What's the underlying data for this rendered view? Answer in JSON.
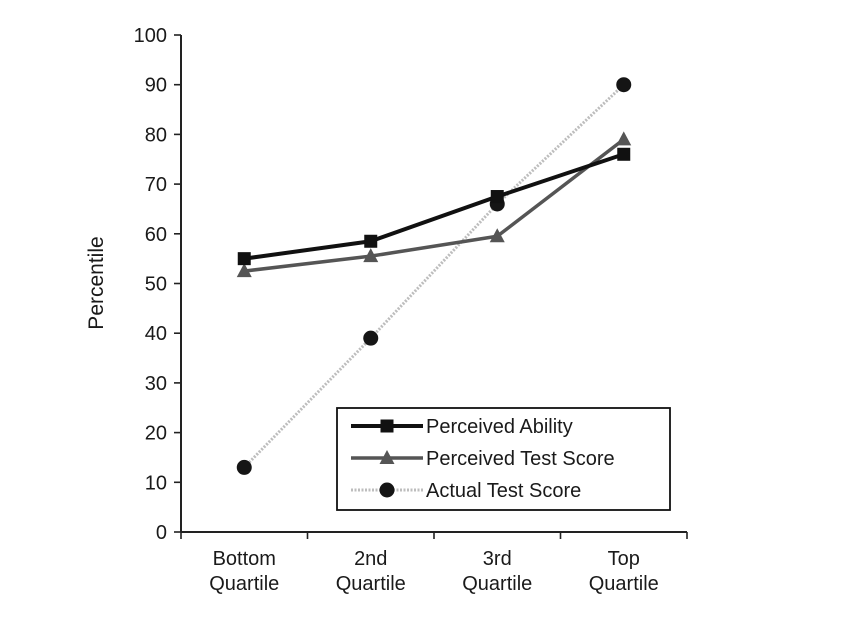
{
  "chart_data": {
    "type": "line",
    "categories": [
      [
        "Bottom",
        "Quartile"
      ],
      [
        "2nd",
        "Quartile"
      ],
      [
        "3rd",
        "Quartile"
      ],
      [
        "Top",
        "Quartile"
      ]
    ],
    "ylabel": "Percentile",
    "ylim": [
      0,
      100
    ],
    "yticks": [
      "0",
      "10",
      "20",
      "30",
      "40",
      "50",
      "60",
      "70",
      "80",
      "90",
      "100"
    ],
    "grid": false,
    "legend_position": "bottom-right",
    "series": [
      {
        "name": "Perceived Ability",
        "values": [
          55,
          58.5,
          67.5,
          76
        ],
        "marker": "square",
        "color": "#111111",
        "style": "solid-thick"
      },
      {
        "name": "Perceived Test Score",
        "values": [
          52.5,
          55.5,
          59.5,
          79
        ],
        "marker": "triangle",
        "color": "#555555",
        "style": "solid"
      },
      {
        "name": "Actual Test Score",
        "values": [
          13,
          39,
          66,
          90
        ],
        "marker": "circle",
        "color": "#bdbdbd",
        "style": "dotted-light"
      }
    ]
  }
}
